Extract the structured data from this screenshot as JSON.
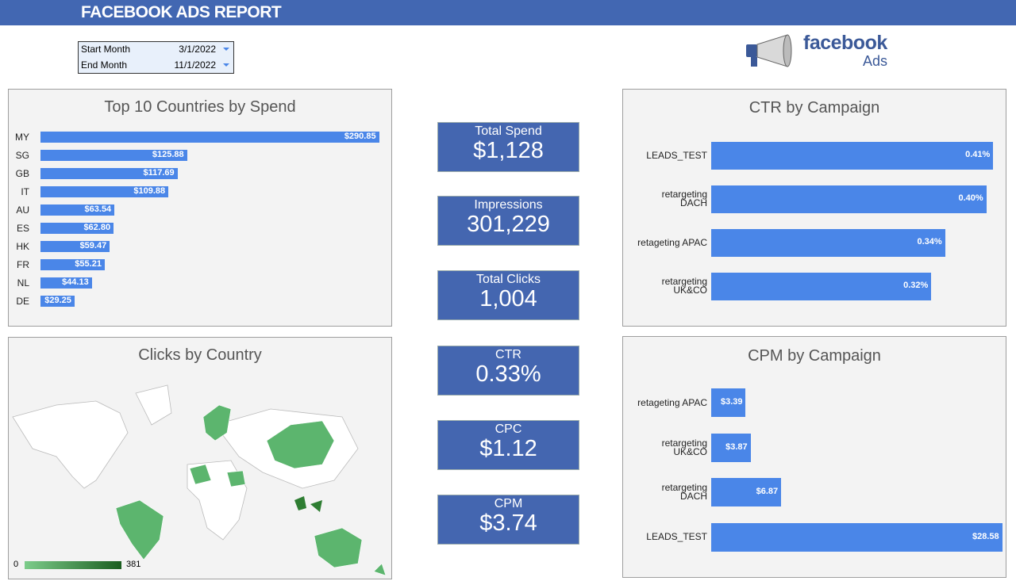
{
  "header": {
    "title": "FACEBOOK ADS REPORT"
  },
  "filters": [
    {
      "label": "Start Month",
      "value": "3/1/2022"
    },
    {
      "label": "End Month",
      "value": "11/1/2022"
    }
  ],
  "logo": {
    "brand": "facebook",
    "sub": "Ads"
  },
  "kpis": [
    {
      "label": "Total Spend",
      "value": "$1,128"
    },
    {
      "label": "Impressions",
      "value": "301,229"
    },
    {
      "label": "Total Clicks",
      "value": "1,004"
    },
    {
      "label": "CTR",
      "value": "0.33%"
    },
    {
      "label": "CPC",
      "value": "$1.12"
    },
    {
      "label": "CPM",
      "value": "$3.74"
    }
  ],
  "map": {
    "title": "Clicks by Country",
    "legend_min": "0",
    "legend_max": "381"
  },
  "chart_data": [
    {
      "type": "hbar",
      "title": "Top 10 Countries by Spend",
      "categories": [
        "MY",
        "SG",
        "GB",
        "IT",
        "AU",
        "ES",
        "HK",
        "FR",
        "NL",
        "DE"
      ],
      "values": [
        290.85,
        125.88,
        117.69,
        109.88,
        63.54,
        62.8,
        59.47,
        55.21,
        44.13,
        29.25
      ],
      "value_labels": [
        "$290.85",
        "$125.88",
        "$117.69",
        "$109.88",
        "$63.54",
        "$62.80",
        "$59.47",
        "$55.21",
        "$44.13",
        "$29.25"
      ],
      "color": "#4a86e8",
      "xlim": [
        0,
        300
      ]
    },
    {
      "type": "hbar",
      "title": "CTR by Campaign",
      "categories": [
        "LEADS_TEST",
        "retargeting\nDACH",
        "retageting APAC",
        "retargeting\nUK&CO"
      ],
      "values": [
        0.41,
        0.4,
        0.34,
        0.32
      ],
      "value_labels": [
        "0.41%",
        "0.40%",
        "0.34%",
        "0.32%"
      ],
      "color": "#4a86e8",
      "xlim": [
        0,
        0.42
      ]
    },
    {
      "type": "hbar",
      "title": "CPM by Campaign",
      "categories": [
        "retageting APAC",
        "retargeting\nUK&CO",
        "retargeting\nDACH",
        "LEADS_TEST"
      ],
      "values": [
        3.39,
        3.87,
        6.87,
        28.58
      ],
      "value_labels": [
        "$3.39",
        "$3.87",
        "$6.87",
        "$28.58"
      ],
      "color": "#4a86e8",
      "xlim": [
        0,
        29
      ]
    }
  ]
}
